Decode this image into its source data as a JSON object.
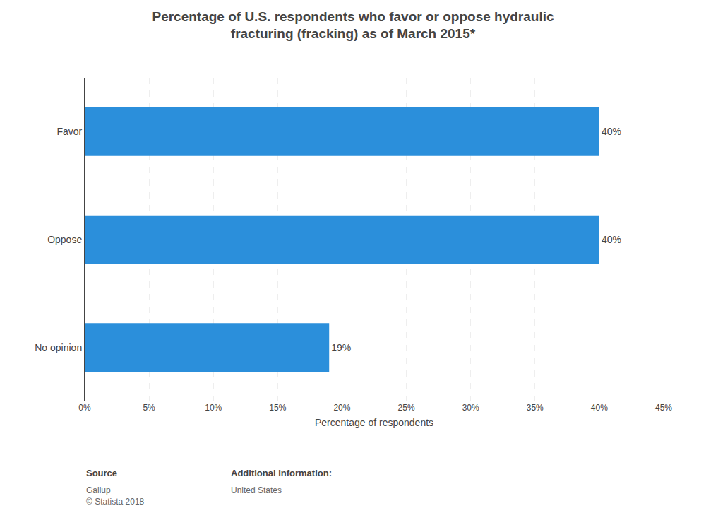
{
  "chart_data": {
    "type": "bar",
    "orientation": "horizontal",
    "title": "Percentage of U.S. respondents who favor or oppose hydraulic\nfracturing (fracking) as of March 2015*",
    "categories": [
      "No opinion",
      "Oppose",
      "Favor"
    ],
    "values": [
      19,
      40,
      40
    ],
    "value_labels": [
      "19%",
      "40%",
      "40%"
    ],
    "data_labels": true,
    "color": "#2b8fdb",
    "xlabel": "Percentage of respondents",
    "xlim": [
      0,
      45
    ],
    "xticks": [
      {
        "value": 0,
        "label": "0%"
      },
      {
        "value": 5,
        "label": "5%"
      },
      {
        "value": 10,
        "label": "10%"
      },
      {
        "value": 15,
        "label": "15%"
      },
      {
        "value": 20,
        "label": "20%"
      },
      {
        "value": 25,
        "label": "25%"
      },
      {
        "value": 30,
        "label": "30%"
      },
      {
        "value": 35,
        "label": "35%"
      },
      {
        "value": 40,
        "label": "40%"
      },
      {
        "value": 45,
        "label": "45%"
      }
    ],
    "grid": true,
    "annotations": [
      "Source",
      "Gallup\n© Statista 2018",
      "Additional Information:",
      "United States"
    ]
  }
}
